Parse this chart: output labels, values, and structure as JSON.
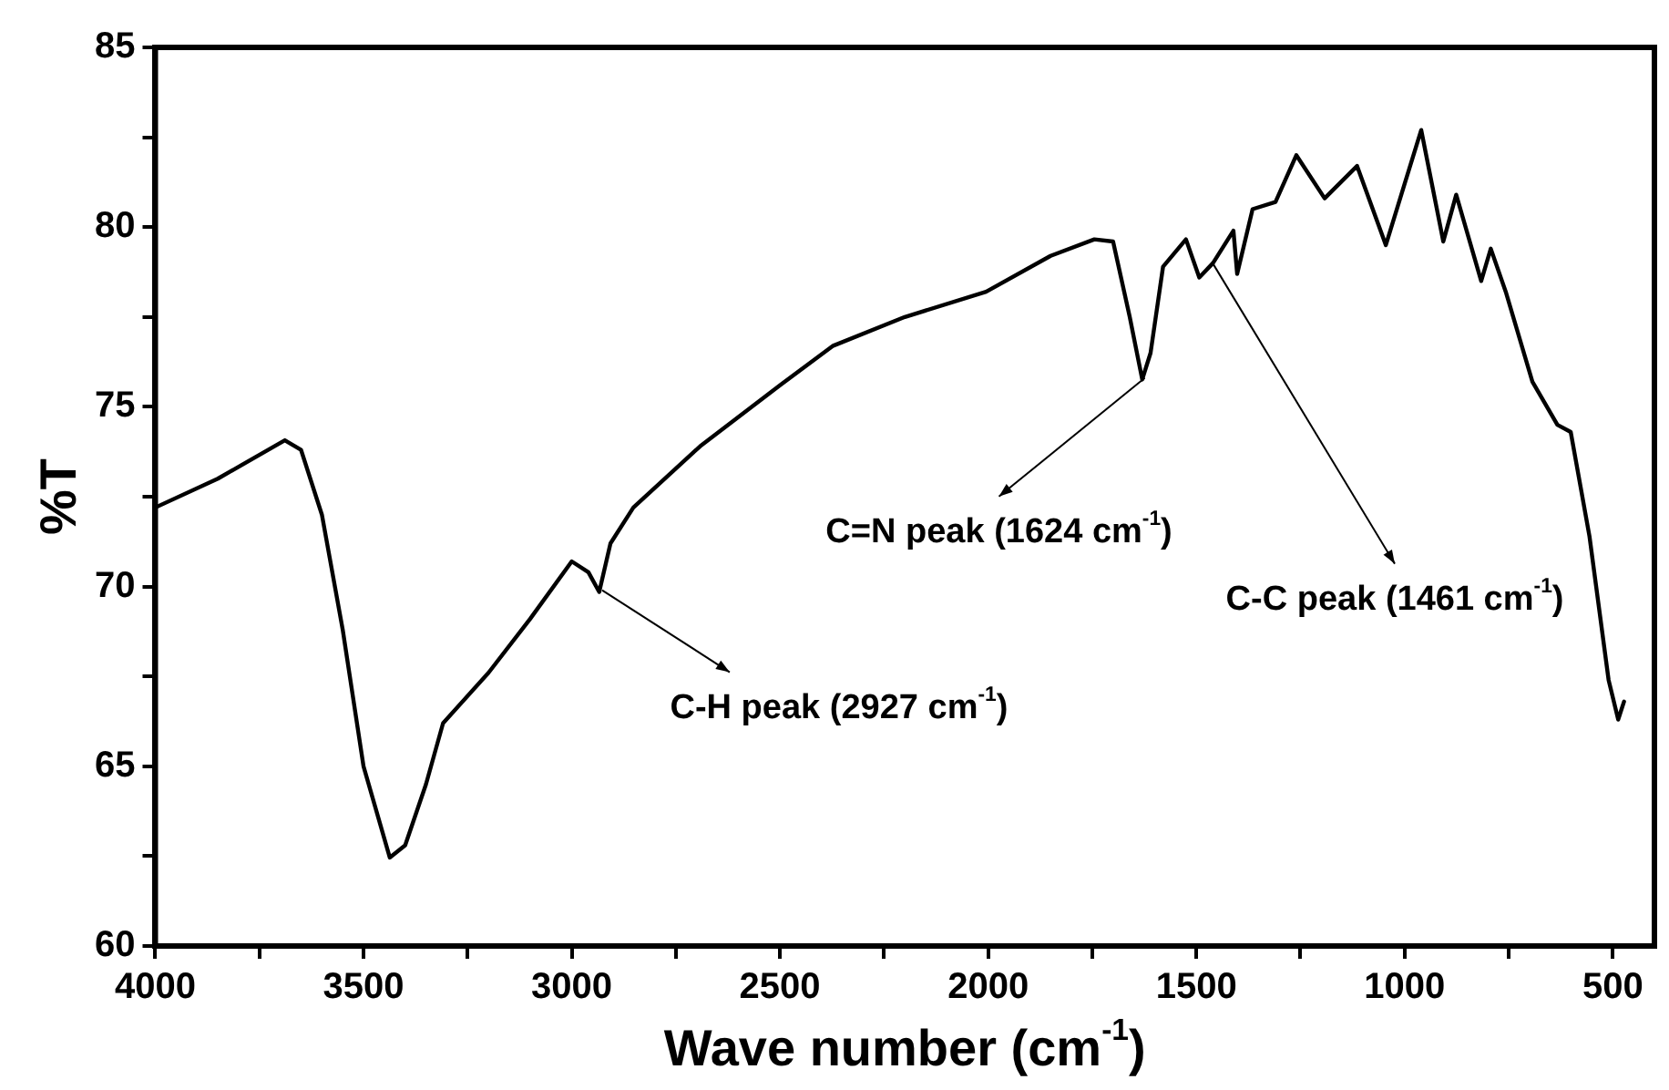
{
  "chart_data": {
    "type": "line",
    "xlabel": "Wave number (cm$^{-1}$)",
    "ylabel": "%T",
    "x": [
      4000,
      3850,
      3689,
      3650,
      3600,
      3550,
      3500,
      3437,
      3400,
      3350,
      3309,
      3200,
      3100,
      3000,
      2960,
      2934,
      2907,
      2852,
      2692,
      2500,
      2372,
      2200,
      2005,
      1850,
      1745,
      1700,
      1660,
      1630,
      1610,
      1580,
      1525,
      1493,
      1460,
      1411,
      1402,
      1365,
      1310,
      1260,
      1192,
      1114,
      1045,
      1000,
      960,
      907,
      876,
      816,
      793,
      757,
      693,
      633,
      601,
      556,
      510,
      487,
      473
    ],
    "series": [
      {
        "color": "#000000",
        "values": [
          72.2,
          73.0,
          74.07,
          73.8,
          72.0,
          68.8,
          65.0,
          62.46,
          62.8,
          64.5,
          66.2,
          67.6,
          69.1,
          70.7,
          70.4,
          69.85,
          71.2,
          72.2,
          73.9,
          75.6,
          76.7,
          77.5,
          78.2,
          79.2,
          79.66,
          79.6,
          77.5,
          75.76,
          76.5,
          78.9,
          79.66,
          78.6,
          79.0,
          79.9,
          78.7,
          80.5,
          80.7,
          82.0,
          80.8,
          81.7,
          79.5,
          81.2,
          82.7,
          79.6,
          80.9,
          78.5,
          79.4,
          78.2,
          75.7,
          74.5,
          74.3,
          71.4,
          67.4,
          66.3,
          66.8
        ]
      }
    ],
    "xlim": [
      4000,
      400
    ],
    "xticks": [
      4000,
      {
        "value": 3750,
        "label": null
      },
      3500,
      {
        "value": 3250,
        "label": null
      },
      3000,
      {
        "value": 2750,
        "label": null
      },
      2500,
      {
        "value": 2250,
        "label": null
      },
      2000,
      {
        "value": 1750,
        "label": null
      },
      1500,
      {
        "value": 1250,
        "label": null
      },
      1000,
      {
        "value": 750,
        "label": null
      },
      500
    ],
    "ylim": [
      60,
      85
    ],
    "yticks": [
      60,
      {
        "value": 62.5,
        "label": null
      },
      65,
      {
        "value": 67.5,
        "label": null
      },
      70,
      {
        "value": 72.5,
        "label": null
      },
      75,
      {
        "value": 77.5,
        "label": null
      },
      80,
      {
        "value": 82.5,
        "label": null
      },
      85
    ],
    "grid": false,
    "legend": false,
    "marker": "none",
    "line_style": "solid",
    "annotations": [
      {
        "text": "C=N peak (1624 cm$^{-1}$)",
        "x": 1624,
        "y": 75.8
      },
      {
        "text": "C-C peak (1461 cm$^{-1}$)",
        "x": 1461,
        "y": 79.0
      },
      {
        "text": "C-H peak (2927 cm$^{-1}$)",
        "x": 2927,
        "y": 69.9
      }
    ]
  }
}
